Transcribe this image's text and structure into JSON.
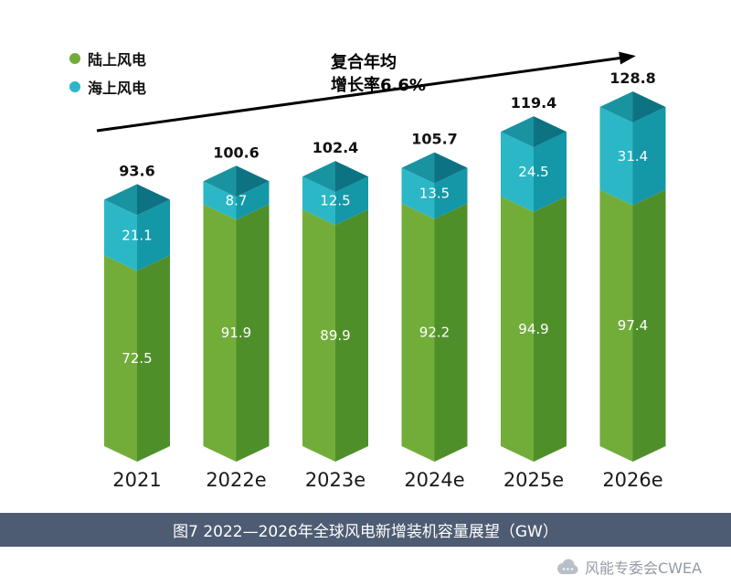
{
  "legend": {
    "items": [
      {
        "label": "陆上风电",
        "color": "#72ad3a"
      },
      {
        "label": "海上风电",
        "color": "#2bb7c6"
      }
    ]
  },
  "annotation": {
    "line1": "复合年均",
    "line2": "增长率6.6%"
  },
  "chart_data": {
    "type": "bar",
    "stacked": true,
    "categories": [
      "2021",
      "2022e",
      "2023e",
      "2024e",
      "2025e",
      "2026e"
    ],
    "series": [
      {
        "name": "陆上风电",
        "values": [
          72.5,
          91.9,
          89.9,
          92.2,
          94.9,
          97.4
        ],
        "color_left": "#72ad3a",
        "color_right": "#4f8f2a"
      },
      {
        "name": "海上风电",
        "values": [
          21.1,
          8.7,
          12.5,
          13.5,
          24.5,
          31.4
        ],
        "color_left": "#2bb7c6",
        "color_right": "#1497a7",
        "cap_left": "#1a93a1",
        "cap_right": "#0d7382"
      }
    ],
    "totals": [
      93.6,
      100.6,
      102.4,
      105.7,
      119.4,
      128.8
    ],
    "title": "图7 2022—2026年全球风电新增装机容量展望（GW）",
    "annotation": "复合年均增长率6.6%",
    "unit": "GW",
    "xlabel": "",
    "ylabel": "",
    "ylim": [
      0,
      135
    ],
    "grid": false,
    "legend_position": "top-left"
  },
  "caption": {
    "text": "图7 2022—2026年全球风电新增装机容量展望（GW）"
  },
  "footer": {
    "brand": "风能专委会CWEA"
  }
}
